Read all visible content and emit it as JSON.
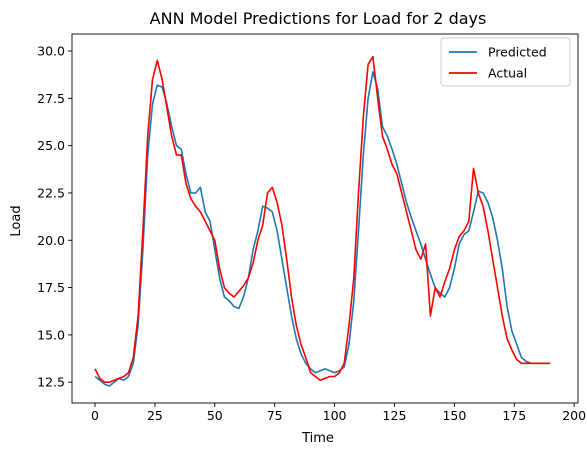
{
  "chart_data": {
    "type": "line",
    "title": "ANN Model Predictions for Load for 2 days",
    "xlabel": "Time",
    "ylabel": "Load",
    "xlim": [
      -9.6,
      201.6
    ],
    "ylim": [
      11.4,
      30.9
    ],
    "x_ticks": [
      0,
      25,
      50,
      75,
      100,
      125,
      150,
      175,
      200
    ],
    "y_ticks": [
      12.5,
      15.0,
      17.5,
      20.0,
      22.5,
      25.0,
      27.5,
      30.0
    ],
    "x_tick_labels": [
      "0",
      "25",
      "50",
      "75",
      "100",
      "125",
      "150",
      "175",
      "200"
    ],
    "y_tick_labels": [
      "12.5",
      "15.0",
      "17.5",
      "20.0",
      "22.5",
      "25.0",
      "27.5",
      "30.0"
    ],
    "legend_position": "top-right",
    "grid": false,
    "x": [
      0,
      2,
      4,
      6,
      8,
      10,
      12,
      14,
      16,
      18,
      20,
      22,
      24,
      26,
      28,
      30,
      32,
      34,
      36,
      38,
      40,
      42,
      44,
      46,
      48,
      50,
      52,
      54,
      56,
      58,
      60,
      62,
      64,
      66,
      68,
      70,
      72,
      74,
      76,
      78,
      80,
      82,
      84,
      86,
      88,
      90,
      92,
      94,
      96,
      98,
      100,
      102,
      104,
      106,
      108,
      110,
      112,
      114,
      116,
      118,
      120,
      122,
      124,
      126,
      128,
      130,
      132,
      134,
      136,
      138,
      140,
      142,
      144,
      146,
      148,
      150,
      152,
      154,
      156,
      158,
      160,
      162,
      164,
      166,
      168,
      170,
      172,
      174,
      176,
      178,
      180,
      182,
      184,
      186,
      188,
      190
    ],
    "series": [
      {
        "name": "Predicted",
        "color": "#1f77b4",
        "values": [
          12.8,
          12.6,
          12.4,
          12.3,
          12.5,
          12.7,
          12.6,
          12.8,
          13.5,
          15.5,
          19.5,
          24.5,
          27.2,
          28.2,
          28.1,
          27.2,
          26.0,
          25.0,
          24.8,
          23.5,
          22.5,
          22.5,
          22.8,
          21.5,
          21.0,
          19.5,
          18.0,
          17.0,
          16.8,
          16.5,
          16.4,
          17.0,
          18.0,
          19.5,
          20.5,
          21.8,
          21.7,
          21.5,
          20.5,
          19.0,
          17.5,
          16.0,
          14.8,
          14.0,
          13.5,
          13.2,
          13.0,
          13.1,
          13.2,
          13.1,
          13.0,
          13.1,
          13.3,
          14.5,
          16.8,
          20.5,
          24.5,
          27.5,
          28.9,
          28.0,
          26.0,
          25.5,
          24.8,
          24.0,
          23.0,
          22.0,
          21.2,
          20.5,
          19.8,
          19.0,
          18.2,
          17.5,
          17.2,
          17.0,
          17.5,
          18.5,
          19.8,
          20.3,
          20.5,
          21.5,
          22.6,
          22.5,
          22.0,
          21.2,
          20.0,
          18.5,
          16.5,
          15.2,
          14.5,
          13.8,
          13.6,
          13.5,
          13.5,
          13.5,
          13.5,
          13.5
        ]
      },
      {
        "name": "Actual",
        "color": "#ff0000",
        "values": [
          13.2,
          12.7,
          12.5,
          12.5,
          12.6,
          12.7,
          12.8,
          13.0,
          13.8,
          16.0,
          20.5,
          25.5,
          28.5,
          29.5,
          28.5,
          27.0,
          25.5,
          24.5,
          24.5,
          23.0,
          22.2,
          21.8,
          21.5,
          21.0,
          20.5,
          20.0,
          18.5,
          17.5,
          17.2,
          17.0,
          17.3,
          17.6,
          18.0,
          18.8,
          20.0,
          20.8,
          22.5,
          22.8,
          22.0,
          20.8,
          19.0,
          17.0,
          15.5,
          14.5,
          13.8,
          13.0,
          12.8,
          12.6,
          12.7,
          12.8,
          12.8,
          13.0,
          13.5,
          15.5,
          18.0,
          22.5,
          26.5,
          29.3,
          29.7,
          27.5,
          25.5,
          24.8,
          24.0,
          23.5,
          22.5,
          21.5,
          20.5,
          19.5,
          19.0,
          19.8,
          16.0,
          17.5,
          17.0,
          17.8,
          18.5,
          19.5,
          20.2,
          20.5,
          21.0,
          23.8,
          22.5,
          21.8,
          20.5,
          19.0,
          17.5,
          16.0,
          14.8,
          14.2,
          13.7,
          13.5,
          13.5,
          13.5,
          13.5,
          13.5,
          13.5,
          13.5
        ]
      }
    ]
  }
}
